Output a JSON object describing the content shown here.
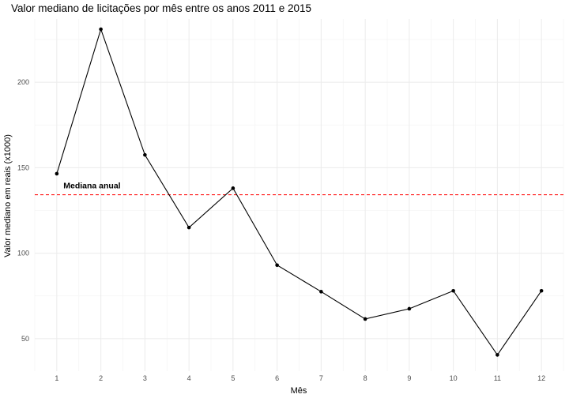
{
  "chart_data": {
    "type": "line",
    "title": "Valor mediano de licitações por mês entre os anos 2011 e 2015",
    "xlabel": "Mês",
    "ylabel": "Valor mediano em reais (x1000)",
    "x": [
      1,
      2,
      3,
      4,
      5,
      6,
      7,
      8,
      9,
      10,
      11,
      12
    ],
    "series": [
      {
        "values": [
          146.5,
          231,
          157.5,
          115,
          138,
          93,
          77.5,
          61.5,
          67.5,
          78,
          40.5,
          78
        ]
      }
    ],
    "xticks": [
      "1",
      "2",
      "3",
      "4",
      "5",
      "6",
      "7",
      "8",
      "9",
      "10",
      "11",
      "12"
    ],
    "yticks": [
      "50",
      "100",
      "150",
      "200"
    ],
    "xlim": [
      0.5,
      12.5
    ],
    "ylim": [
      31,
      237
    ],
    "grid": true,
    "reference_line": {
      "y": 134.2,
      "label": "Mediana anual",
      "color": "#ff0000",
      "style": "dashed"
    },
    "colors": {
      "line": "#000000",
      "point": "#000000",
      "reference": "#ff0000"
    }
  }
}
